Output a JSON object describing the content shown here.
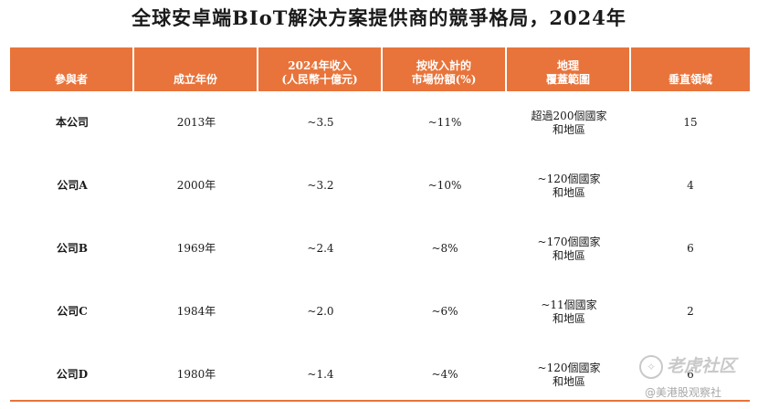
{
  "title": "全球安卓端BIoT解決方案提供商的競爭格局，2024年",
  "table": {
    "headers": [
      {
        "line1": "參與者",
        "line2": ""
      },
      {
        "line1": "成立年份",
        "line2": ""
      },
      {
        "line1": "2024年收入",
        "line2": "(人民幣十億元)"
      },
      {
        "line1": "按收入計的",
        "line2": "市場份額(%)"
      },
      {
        "line1": "地理",
        "line2": "覆蓋範圍"
      },
      {
        "line1": "垂直領域",
        "line2": ""
      }
    ],
    "rows": [
      {
        "name": "本公司",
        "year": "2013年",
        "revenue": "~3.5",
        "share": "~11%",
        "geo1": "超過200個國家",
        "geo2": "和地區",
        "verticals": "15"
      },
      {
        "name": "公司A",
        "year": "2000年",
        "revenue": "~3.2",
        "share": "~10%",
        "geo1": "~120個國家",
        "geo2": "和地區",
        "verticals": "4"
      },
      {
        "name": "公司B",
        "year": "1969年",
        "revenue": "~2.4",
        "share": "~8%",
        "geo1": "~170個國家",
        "geo2": "和地區",
        "verticals": "6"
      },
      {
        "name": "公司C",
        "year": "1984年",
        "revenue": "~2.0",
        "share": "~6%",
        "geo1": "~11個國家",
        "geo2": "和地區",
        "verticals": "2"
      },
      {
        "name": "公司D",
        "year": "1980年",
        "revenue": "~1.4",
        "share": "~4%",
        "geo1": "~120個國家",
        "geo2": "和地區",
        "verticals": "6"
      }
    ]
  },
  "watermark": {
    "primary": "老虎社区",
    "secondary": "@美港股观察社"
  },
  "colors": {
    "header_bg": "#e8743b",
    "header_text": "#ffffff"
  }
}
